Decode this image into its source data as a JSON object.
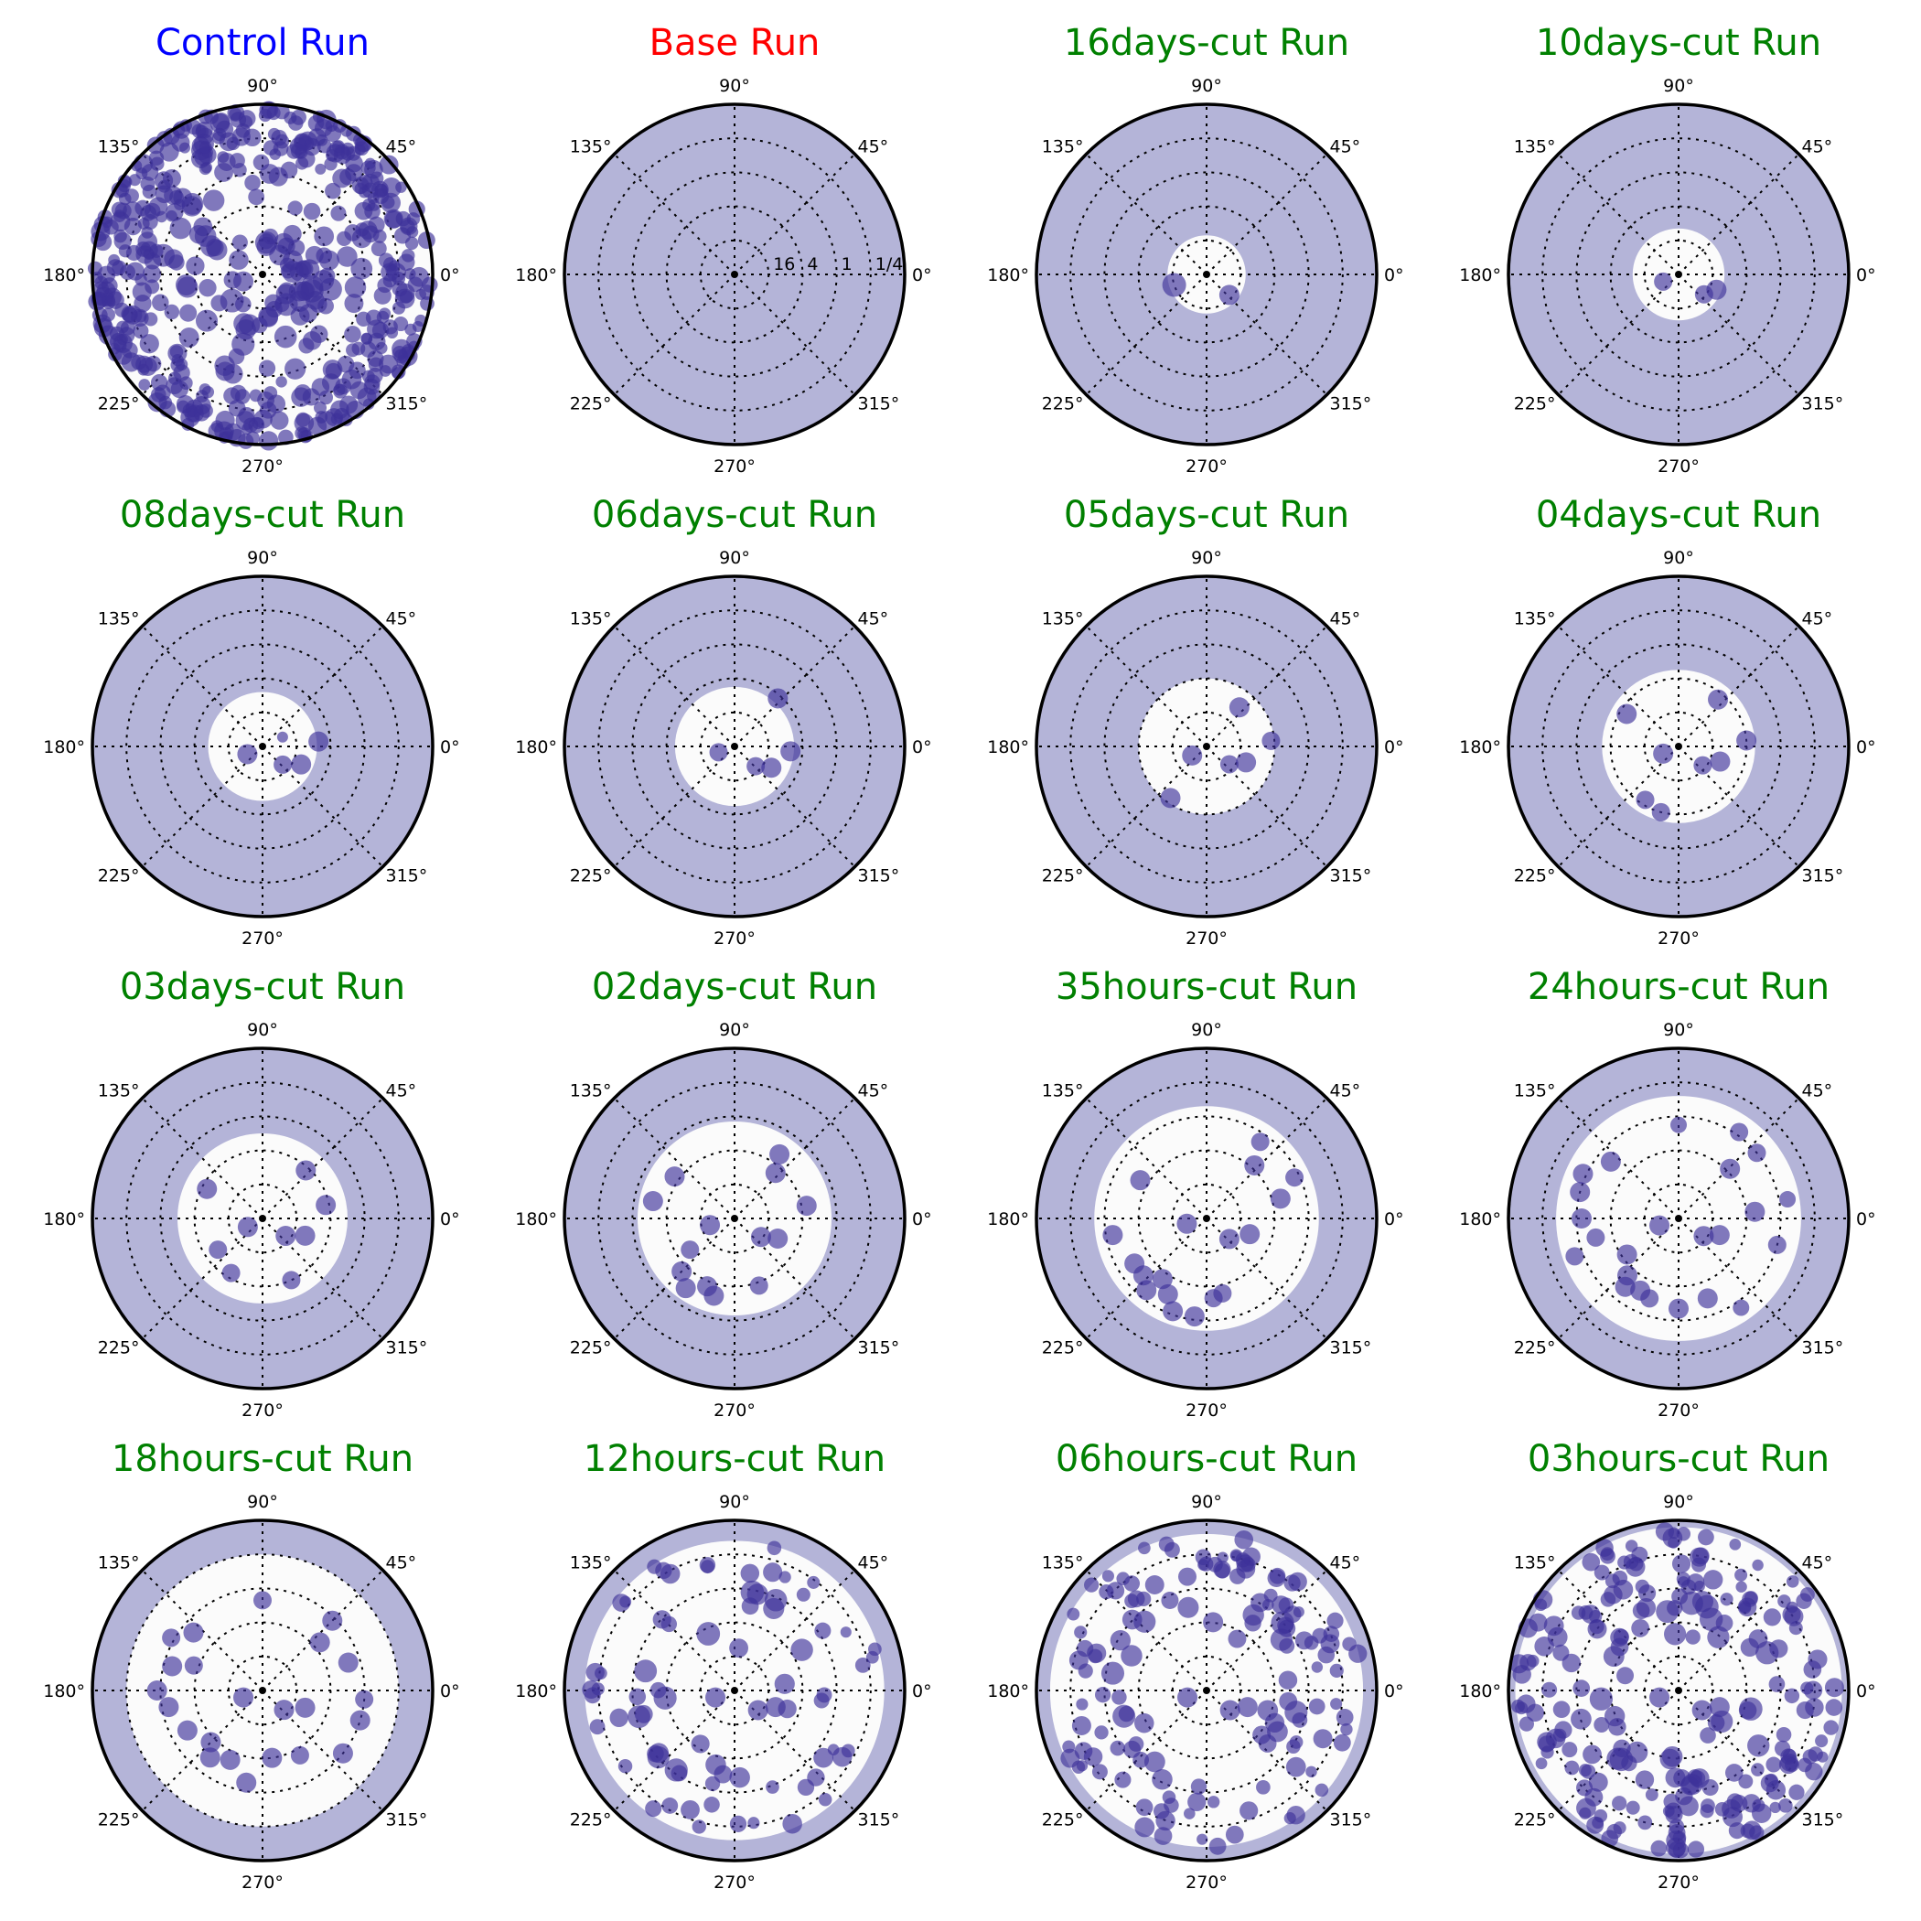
{
  "figure": {
    "background": "#ffffff"
  },
  "style": {
    "cut_fill": "#b4b4d8",
    "inner_fill": "#fbfbfb",
    "point_color": "#3e3199",
    "point_opacity": 0.65,
    "frame_color": "#000000",
    "colors": {
      "blue": "#0000ff",
      "red": "#ff0000",
      "green": "#008000"
    }
  },
  "angle_labels": [
    "0°",
    "45°",
    "90°",
    "135°",
    "180°",
    "225°",
    "270°",
    "315°"
  ],
  "radial_tick_labels": [
    "16",
    "4",
    "1",
    "1/4"
  ],
  "chart_data": [
    {
      "type": "scatter",
      "title": "Control Run",
      "title_color": "blue",
      "cut_radius_fraction": 1.0,
      "point_count": 520,
      "seed": 11,
      "point_distribution": "outer ring, dense near edge"
    },
    {
      "type": "scatter",
      "title": "Base Run",
      "title_color": "red",
      "cut_radius_fraction": 0.0,
      "point_count": 0,
      "show_radial_labels": true
    },
    {
      "type": "scatter",
      "title": "16days-cut Run",
      "title_color": "green",
      "cut_radius_fraction": 0.23,
      "points": [
        [
          198,
          0.2,
          26
        ],
        [
          318,
          0.18,
          22
        ]
      ]
    },
    {
      "type": "scatter",
      "title": "10days-cut Run",
      "title_color": "green",
      "cut_radius_fraction": 0.27,
      "points": [
        [
          205,
          0.1,
          20
        ],
        [
          322,
          0.19,
          20
        ],
        [
          338,
          0.24,
          22
        ]
      ]
    },
    {
      "type": "scatter",
      "title": "08days-cut Run",
      "title_color": "green",
      "cut_radius_fraction": 0.32,
      "points": [
        [
          207,
          0.1,
          22
        ],
        [
          318,
          0.16,
          20
        ],
        [
          335,
          0.25,
          22
        ],
        [
          5,
          0.33,
          22
        ],
        [
          25,
          0.13,
          12
        ]
      ]
    },
    {
      "type": "scatter",
      "title": "06days-cut Run",
      "title_color": "green",
      "cut_radius_fraction": 0.35,
      "points": [
        [
          200,
          0.1,
          20
        ],
        [
          317,
          0.17,
          20
        ],
        [
          330,
          0.25,
          22
        ],
        [
          355,
          0.33,
          22
        ],
        [
          48,
          0.38,
          22
        ]
      ]
    },
    {
      "type": "scatter",
      "title": "05days-cut Run",
      "title_color": "green",
      "cut_radius_fraction": 0.4,
      "points": [
        [
          212,
          0.1,
          22
        ],
        [
          322,
          0.17,
          20
        ],
        [
          338,
          0.25,
          22
        ],
        [
          5,
          0.38,
          20
        ],
        [
          50,
          0.3,
          22
        ],
        [
          235,
          0.37,
          22
        ]
      ]
    },
    {
      "type": "scatter",
      "title": "04days-cut Run",
      "title_color": "green",
      "cut_radius_fraction": 0.45,
      "points": [
        [
          205,
          0.1,
          22
        ],
        [
          322,
          0.18,
          20
        ],
        [
          340,
          0.26,
          22
        ],
        [
          5,
          0.4,
          22
        ],
        [
          50,
          0.36,
          22
        ],
        [
          148,
          0.36,
          22
        ],
        [
          238,
          0.37,
          20
        ],
        [
          255,
          0.4,
          20
        ]
      ]
    },
    {
      "type": "scatter",
      "title": "03days-cut Run",
      "title_color": "green",
      "cut_radius_fraction": 0.5,
      "points": [
        [
          210,
          0.1,
          22
        ],
        [
          323,
          0.17,
          22
        ],
        [
          338,
          0.27,
          22
        ],
        [
          12,
          0.38,
          22
        ],
        [
          48,
          0.38,
          22
        ],
        [
          152,
          0.37,
          22
        ],
        [
          215,
          0.32,
          20
        ],
        [
          240,
          0.37,
          20
        ],
        [
          295,
          0.4,
          20
        ]
      ]
    },
    {
      "type": "scatter",
      "title": "02days-cut Run",
      "title_color": "green",
      "cut_radius_fraction": 0.57,
      "points": [
        [
          195,
          0.15,
          22
        ],
        [
          325,
          0.19,
          22
        ],
        [
          335,
          0.28,
          22
        ],
        [
          10,
          0.43,
          22
        ],
        [
          48,
          0.36,
          22
        ],
        [
          55,
          0.46,
          22
        ],
        [
          145,
          0.43,
          22
        ],
        [
          168,
          0.49,
          22
        ],
        [
          215,
          0.32,
          20
        ],
        [
          225,
          0.44,
          22
        ],
        [
          235,
          0.5,
          22
        ],
        [
          248,
          0.43,
          22
        ],
        [
          255,
          0.47,
          22
        ],
        [
          290,
          0.42,
          20
        ]
      ]
    },
    {
      "type": "scatter",
      "title": "35hours-cut Run",
      "title_color": "green",
      "cut_radius_fraction": 0.66,
      "points": [
        [
          195,
          0.12,
          22
        ],
        [
          318,
          0.18,
          22
        ],
        [
          340,
          0.27,
          22
        ],
        [
          15,
          0.45,
          22
        ],
        [
          48,
          0.42,
          22
        ],
        [
          25,
          0.57,
          20
        ],
        [
          55,
          0.55,
          20
        ],
        [
          150,
          0.45,
          22
        ],
        [
          190,
          0.56,
          22
        ],
        [
          212,
          0.5,
          22
        ],
        [
          222,
          0.5,
          22
        ],
        [
          230,
          0.55,
          22
        ],
        [
          243,
          0.5,
          22
        ],
        [
          250,
          0.58,
          22
        ],
        [
          263,
          0.58,
          22
        ],
        [
          282,
          0.45,
          20
        ],
        [
          275,
          0.47,
          20
        ],
        [
          234,
          0.44,
          22
        ]
      ]
    },
    {
      "type": "scatter",
      "title": "24hours-cut Run",
      "title_color": "green",
      "cut_radius_fraction": 0.72,
      "points": [
        [
          200,
          0.12,
          22
        ],
        [
          325,
          0.18,
          22
        ],
        [
          338,
          0.26,
          22
        ],
        [
          5,
          0.45,
          22
        ],
        [
          44,
          0.42,
          22
        ],
        [
          40,
          0.6,
          20
        ],
        [
          55,
          0.62,
          20
        ],
        [
          90,
          0.55,
          18
        ],
        [
          140,
          0.52,
          22
        ],
        [
          155,
          0.62,
          22
        ],
        [
          165,
          0.6,
          22
        ],
        [
          180,
          0.57,
          22
        ],
        [
          193,
          0.5,
          20
        ],
        [
          215,
          0.37,
          22
        ],
        [
          228,
          0.45,
          22
        ],
        [
          232,
          0.51,
          22
        ],
        [
          242,
          0.48,
          22
        ],
        [
          250,
          0.5,
          20
        ],
        [
          270,
          0.53,
          22
        ],
        [
          290,
          0.5,
          22
        ],
        [
          345,
          0.6,
          20
        ],
        [
          10,
          0.65,
          18
        ],
        [
          200,
          0.65,
          20
        ],
        [
          305,
          0.64,
          18
        ]
      ]
    },
    {
      "type": "scatter",
      "title": "18hours-cut Run",
      "title_color": "green",
      "cut_radius_fraction": 0.8,
      "points": [
        [
          200,
          0.12,
          22
        ],
        [
          318,
          0.17,
          22
        ],
        [
          338,
          0.27,
          22
        ],
        [
          18,
          0.53,
          22
        ],
        [
          40,
          0.44,
          22
        ],
        [
          45,
          0.58,
          22
        ],
        [
          90,
          0.53,
          20
        ],
        [
          140,
          0.53,
          22
        ],
        [
          150,
          0.62,
          20
        ],
        [
          165,
          0.55,
          22
        ],
        [
          180,
          0.62,
          22
        ],
        [
          190,
          0.56,
          22
        ],
        [
          208,
          0.5,
          22
        ],
        [
          225,
          0.43,
          22
        ],
        [
          232,
          0.5,
          22
        ],
        [
          245,
          0.45,
          22
        ],
        [
          260,
          0.55,
          22
        ],
        [
          278,
          0.4,
          22
        ],
        [
          300,
          0.44,
          20
        ],
        [
          322,
          0.6,
          22
        ],
        [
          343,
          0.6,
          22
        ],
        [
          355,
          0.6,
          20
        ],
        [
          160,
          0.43,
          20
        ]
      ]
    },
    {
      "type": "scatter",
      "title": "12hours-cut Run",
      "title_color": "green",
      "cut_radius_fraction": 0.88,
      "point_count": 72,
      "seed": 41,
      "point_distribution": "uniform inside cut, denser near cut edge"
    },
    {
      "type": "scatter",
      "title": "06hours-cut Run",
      "title_color": "green",
      "cut_radius_fraction": 0.92,
      "point_count": 135,
      "seed": 57,
      "point_distribution": "uniform inside cut, denser near cut edge"
    },
    {
      "type": "scatter",
      "title": "03hours-cut Run",
      "title_color": "green",
      "cut_radius_fraction": 0.96,
      "point_count": 220,
      "seed": 73,
      "point_distribution": "uniform inside cut, denser near cut edge"
    }
  ]
}
